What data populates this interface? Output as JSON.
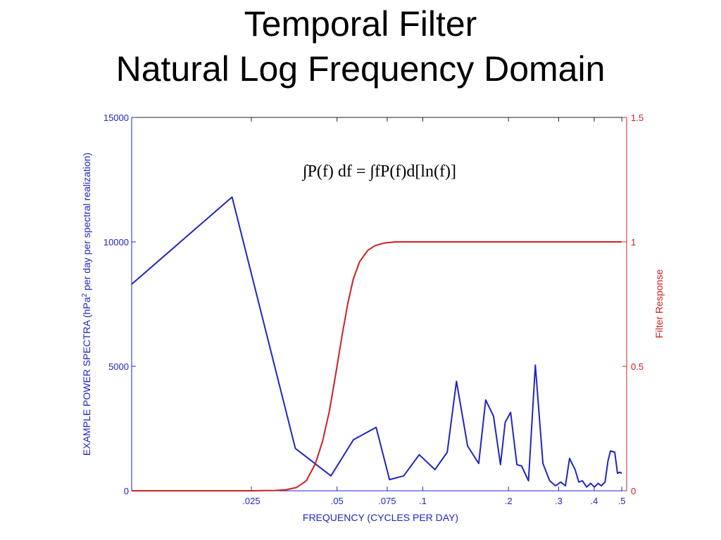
{
  "slide": {
    "title_line1": "Temporal Filter",
    "title_line2": "Natural Log Frequency Domain"
  },
  "colors": {
    "spectrum": "#1f26c0",
    "filter": "#cc2020",
    "left_axis": "#1f26c0",
    "right_axis": "#cc2020",
    "bottom_axis": "#1f26c0"
  },
  "chart_data": {
    "type": "line",
    "xscale": "log",
    "xlabel": "FREQUENCY (CYCLES PER DAY)",
    "ylabel_left_pre": "EXAMPLE POWER SPECTRA (hPa",
    "ylabel_left_sup": "2",
    "ylabel_left_post": " per day per spectral realization)",
    "ylabel_right": "Filter Response",
    "xlim": [
      0.0095,
      0.52
    ],
    "ylim_left": [
      0,
      15000
    ],
    "ylim_right": [
      0,
      1.5
    ],
    "x_ticks": [
      0.025,
      0.05,
      0.075,
      0.1,
      0.2,
      0.3,
      0.4,
      0.5
    ],
    "x_tick_labels": [
      ".025",
      ".05",
      ".075",
      ".1",
      ".2",
      ".3",
      ".4",
      ".5"
    ],
    "y_left_ticks": [
      0,
      5000,
      10000,
      15000
    ],
    "y_left_tick_labels": [
      "0",
      "5000",
      "10000",
      "15000"
    ],
    "y_right_ticks": [
      0,
      0.5,
      1,
      1.5
    ],
    "y_right_tick_labels": [
      "0",
      "0.5",
      "1",
      "1.5"
    ],
    "annotation": "∫P(f) df = ∫fP(f)d[ln(f)]",
    "series": [
      {
        "axis": "left",
        "x": [
          0.0095,
          0.0214,
          0.0357,
          0.0476,
          0.0571,
          0.0686,
          0.0764,
          0.0857,
          0.0972,
          0.1103,
          0.1219,
          0.1313,
          0.1437,
          0.1572,
          0.1663,
          0.1772,
          0.1875,
          0.1947,
          0.2035,
          0.2141,
          0.2223,
          0.2352,
          0.2485,
          0.2642,
          0.2791,
          0.2926,
          0.3054,
          0.3168,
          0.3277,
          0.3427,
          0.353,
          0.3636,
          0.3764,
          0.3885,
          0.4007,
          0.4129,
          0.4238,
          0.4366,
          0.4472,
          0.4563,
          0.4724,
          0.4829,
          0.4918,
          0.5
        ],
        "y": [
          8300,
          11800,
          1700,
          600,
          2050,
          2550,
          450,
          600,
          1450,
          850,
          1550,
          4400,
          1800,
          1100,
          3650,
          3000,
          1050,
          2750,
          3150,
          1050,
          1000,
          400,
          5050,
          1100,
          400,
          200,
          350,
          200,
          1300,
          850,
          350,
          400,
          150,
          300,
          150,
          300,
          200,
          350,
          1200,
          1600,
          1550,
          700,
          750,
          700
        ]
      },
      {
        "axis": "right",
        "x": [
          0.0095,
          0.012,
          0.016,
          0.02,
          0.025,
          0.03,
          0.033,
          0.036,
          0.039,
          0.042,
          0.0445,
          0.047,
          0.0495,
          0.052,
          0.0545,
          0.057,
          0.06,
          0.064,
          0.068,
          0.073,
          0.08,
          0.09,
          0.1,
          0.15,
          0.2,
          0.3,
          0.4,
          0.5
        ],
        "y": [
          0.0,
          0.0,
          0.0,
          0.0,
          0.0,
          0.001,
          0.004,
          0.013,
          0.04,
          0.11,
          0.2,
          0.32,
          0.47,
          0.62,
          0.75,
          0.85,
          0.92,
          0.965,
          0.985,
          0.995,
          1.0,
          1.0,
          1.0,
          1.0,
          1.0,
          1.0,
          1.0,
          1.0
        ]
      }
    ]
  }
}
